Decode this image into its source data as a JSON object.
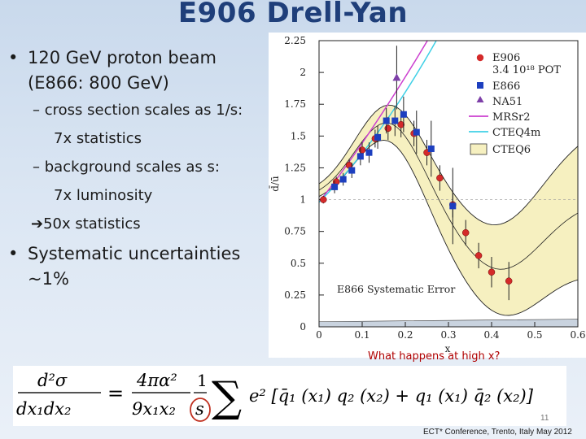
{
  "slide": {
    "title": "E906 Drell-Yan",
    "bullets": {
      "b1_line1": "120 GeV proton beam",
      "b1_line2": "(E866:  800 GeV)",
      "sub1": "cross section scales as 1/s:",
      "sub1_cont": "7x statistics",
      "sub2": "background scales as s:",
      "sub2_cont": "7x luminosity",
      "arrow": "50x statistics",
      "b2_line1": "Systematic uncertainties",
      "b2_line2": "~1%"
    },
    "question": "What happens at high x?",
    "slide_number": "11",
    "footer": "ECT* Conference, Trento, Italy May 2012",
    "bullet_char": "•",
    "dash_char": "–",
    "arrow_char": "➔"
  },
  "chart_data": {
    "type": "scatter",
    "xlabel": "x",
    "ylabel": "d̄/ū",
    "xlim": [
      0,
      0.6
    ],
    "ylim": [
      0,
      2.25
    ],
    "x_ticks": [
      "0",
      "0.1",
      "0.2",
      "0.3",
      "0.4",
      "0.5",
      "0.6"
    ],
    "y_ticks": [
      "0",
      "0.25",
      "0.5",
      "0.75",
      "1",
      "1.25",
      "1.5",
      "1.75",
      "2",
      "2.25"
    ],
    "annotation": "E866 Systematic Error",
    "legend_position": "top-right",
    "legend": {
      "e906": "E906",
      "e906_sub": "3.4 10¹⁸ POT",
      "e866": "E866",
      "na51": "NA51",
      "mrsr2": "MRSr2",
      "cteq4m": "CTEQ4m",
      "cteq6": "CTEQ6"
    },
    "colors": {
      "e906": "#d42a2a",
      "e866": "#1d3fbf",
      "na51": "#7d3fa8",
      "mrsr2": "#cc3fcf",
      "cteq4m": "#3fd0e6",
      "cteq6_band": "#f6f0c0"
    },
    "series": [
      {
        "name": "E906",
        "points": [
          {
            "x": 0.01,
            "y": 1.0,
            "err": 0.03
          },
          {
            "x": 0.04,
            "y": 1.14,
            "err": 0.04
          },
          {
            "x": 0.07,
            "y": 1.27,
            "err": 0.05
          },
          {
            "x": 0.1,
            "y": 1.39,
            "err": 0.06
          },
          {
            "x": 0.13,
            "y": 1.48,
            "err": 0.07
          },
          {
            "x": 0.16,
            "y": 1.56,
            "err": 0.09
          },
          {
            "x": 0.19,
            "y": 1.59,
            "err": 0.1
          },
          {
            "x": 0.22,
            "y": 1.52,
            "err": 0.1
          },
          {
            "x": 0.25,
            "y": 1.37,
            "err": 0.1
          },
          {
            "x": 0.28,
            "y": 1.17,
            "err": 0.1
          },
          {
            "x": 0.31,
            "y": 0.96,
            "err": 0.1
          },
          {
            "x": 0.34,
            "y": 0.74,
            "err": 0.1
          },
          {
            "x": 0.37,
            "y": 0.56,
            "err": 0.1
          },
          {
            "x": 0.4,
            "y": 0.43,
            "err": 0.12
          },
          {
            "x": 0.44,
            "y": 0.36,
            "err": 0.15
          }
        ]
      },
      {
        "name": "E866",
        "points": [
          {
            "x": 0.036,
            "y": 1.1,
            "err": 0.05
          },
          {
            "x": 0.056,
            "y": 1.16,
            "err": 0.05
          },
          {
            "x": 0.076,
            "y": 1.23,
            "err": 0.06
          },
          {
            "x": 0.096,
            "y": 1.34,
            "err": 0.07
          },
          {
            "x": 0.116,
            "y": 1.37,
            "err": 0.08
          },
          {
            "x": 0.136,
            "y": 1.49,
            "err": 0.09
          },
          {
            "x": 0.156,
            "y": 1.62,
            "err": 0.1
          },
          {
            "x": 0.176,
            "y": 1.62,
            "err": 0.12
          },
          {
            "x": 0.196,
            "y": 1.67,
            "err": 0.14
          },
          {
            "x": 0.226,
            "y": 1.53,
            "err": 0.17
          },
          {
            "x": 0.26,
            "y": 1.4,
            "err": 0.22
          },
          {
            "x": 0.31,
            "y": 0.95,
            "err": 0.3
          }
        ]
      },
      {
        "name": "NA51",
        "points": [
          {
            "x": 0.18,
            "y": 1.96,
            "err": 0.25
          }
        ]
      }
    ]
  }
}
